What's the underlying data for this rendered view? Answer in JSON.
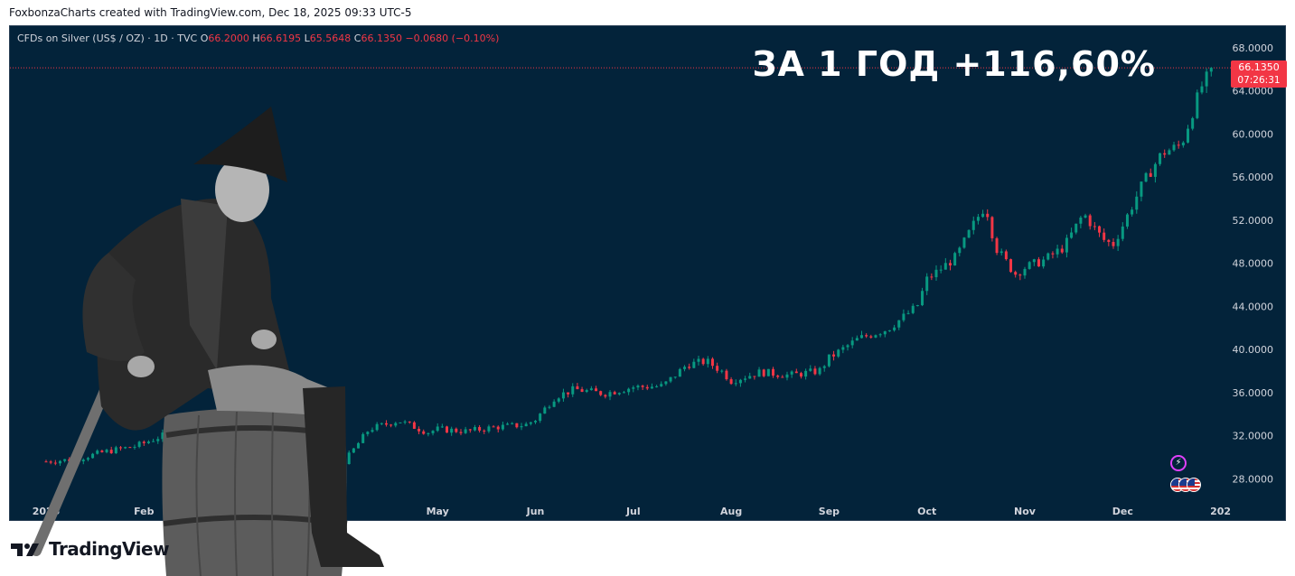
{
  "header": {
    "caption": "FoxbonzaCharts created with TradingView.com, Dec 18, 2025 09:33 UTC-5"
  },
  "symbol": {
    "name": "CFDs on Silver (US$ / OZ) · 1D · TVC",
    "o_label": "O",
    "o_value": "66.2000",
    "h_label": "H",
    "h_value": "66.6195",
    "l_label": "L",
    "l_value": "65.5648",
    "c_label": "C",
    "c_value": "66.1350",
    "change": "−0.0680 (−0.10%)"
  },
  "headline": "ЗА 1 ГОД +116,60%",
  "price_tag": {
    "price": "66.1350",
    "timer": "07:26:31"
  },
  "colors": {
    "background": "#03233a",
    "up": "#089981",
    "down": "#f23645",
    "text": "#d1d4dc"
  },
  "icons": {
    "event": "lightning-icon",
    "flag": "us-flag-icon",
    "logo": "tradingview-logo-icon"
  },
  "footer": {
    "logo_text": "TradingView"
  },
  "chart_data": {
    "type": "candlestick",
    "ylim": [
      24,
      70
    ],
    "y_ticks": [
      "28.0000",
      "32.0000",
      "36.0000",
      "40.0000",
      "44.0000",
      "48.0000",
      "52.0000",
      "56.0000",
      "60.0000",
      "64.0000",
      "68.0000"
    ],
    "x_tick_labels": [
      {
        "label": "2025",
        "month": 0
      },
      {
        "label": "Feb",
        "month": 1
      },
      {
        "label": "May",
        "month": 4
      },
      {
        "label": "Jun",
        "month": 5
      },
      {
        "label": "Jul",
        "month": 6
      },
      {
        "label": "Aug",
        "month": 7
      },
      {
        "label": "Sep",
        "month": 8
      },
      {
        "label": "Oct",
        "month": 9
      },
      {
        "label": "Nov",
        "month": 10
      },
      {
        "label": "Dec",
        "month": 11
      },
      {
        "label": "202",
        "month": 12
      }
    ],
    "last_price": 66.135,
    "path": [
      [
        0,
        29.6
      ],
      [
        0.3,
        29.8
      ],
      [
        0.6,
        30.5
      ],
      [
        0.9,
        31.0
      ],
      [
        1.0,
        31.3
      ],
      [
        1.3,
        32.4
      ],
      [
        1.6,
        32.0
      ],
      [
        1.9,
        32.8
      ],
      [
        2.0,
        33.2
      ],
      [
        2.3,
        32.4
      ],
      [
        2.6,
        33.5
      ],
      [
        2.9,
        30.5
      ],
      [
        3.05,
        29.6
      ],
      [
        3.3,
        32.6
      ],
      [
        3.6,
        33.4
      ],
      [
        3.9,
        32.3
      ],
      [
        4.0,
        32.6
      ],
      [
        4.3,
        32.4
      ],
      [
        4.6,
        32.8
      ],
      [
        4.9,
        33.0
      ],
      [
        5.0,
        33.5
      ],
      [
        5.2,
        35.6
      ],
      [
        5.4,
        36.3
      ],
      [
        5.7,
        35.9
      ],
      [
        6.0,
        36.5
      ],
      [
        6.3,
        36.6
      ],
      [
        6.55,
        38.6
      ],
      [
        6.75,
        38.9
      ],
      [
        6.9,
        38.0
      ],
      [
        7.0,
        37.1
      ],
      [
        7.3,
        37.9
      ],
      [
        7.6,
        37.6
      ],
      [
        7.9,
        38.0
      ],
      [
        8.0,
        39.2
      ],
      [
        8.3,
        41.0
      ],
      [
        8.6,
        41.9
      ],
      [
        8.9,
        44.0
      ],
      [
        9.0,
        46.5
      ],
      [
        9.3,
        48.6
      ],
      [
        9.5,
        52.0
      ],
      [
        9.6,
        53.4
      ],
      [
        9.7,
        49.5
      ],
      [
        9.9,
        47.0
      ],
      [
        10.0,
        47.6
      ],
      [
        10.2,
        48.3
      ],
      [
        10.4,
        49.5
      ],
      [
        10.6,
        52.6
      ],
      [
        10.8,
        50.2
      ],
      [
        10.9,
        49.7
      ],
      [
        11.0,
        51.5
      ],
      [
        11.2,
        55.3
      ],
      [
        11.4,
        58.2
      ],
      [
        11.6,
        59.0
      ],
      [
        11.8,
        64.3
      ],
      [
        11.92,
        66.13
      ]
    ]
  }
}
